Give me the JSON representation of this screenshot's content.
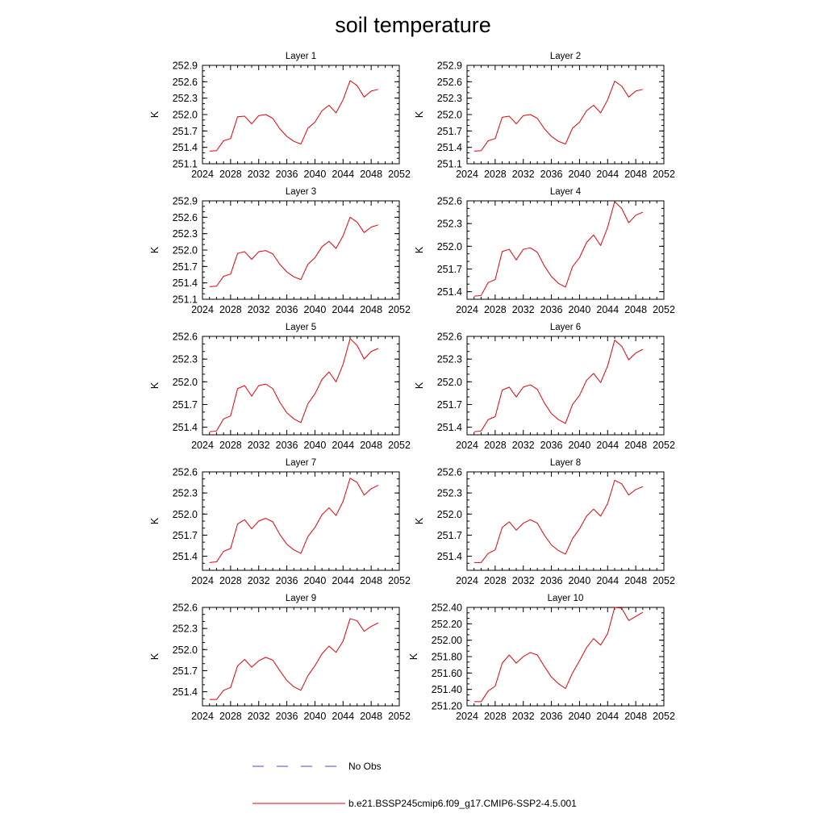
{
  "title": "soil temperature",
  "legend": [
    {
      "label": "No Obs",
      "color": "#4a4ad8",
      "dashed": true
    },
    {
      "label": "b.e21.BSSP245cmip6.f09_g17.CMIP6-SSP2-4.5.001",
      "color": "#e8000b",
      "dashed": false
    }
  ],
  "chart_data": [
    {
      "type": "line",
      "title": "Layer 1",
      "ylabel": "K",
      "xlim": [
        2024,
        2052
      ],
      "xticks": [
        "2024",
        "2028",
        "2032",
        "2036",
        "2040",
        "2044",
        "2048",
        "2052"
      ],
      "ylim": [
        251.1,
        252.9
      ],
      "yticks": [
        "251.1",
        "251.4",
        "251.7",
        "252.0",
        "252.3",
        "252.6",
        "252.9"
      ],
      "series": [
        {
          "color": "#e8000b",
          "x": [
            2025,
            2026,
            2027,
            2028,
            2029,
            2030,
            2031,
            2032,
            2033,
            2034,
            2035,
            2036,
            2037,
            2038,
            2039,
            2040,
            2041,
            2042,
            2043,
            2044,
            2045,
            2046,
            2047,
            2048,
            2049
          ],
          "values": [
            251.33,
            251.34,
            251.52,
            251.56,
            251.96,
            251.97,
            251.83,
            251.98,
            252.0,
            251.93,
            251.74,
            251.6,
            251.51,
            251.46,
            251.75,
            251.86,
            252.07,
            252.17,
            252.03,
            252.27,
            252.62,
            252.53,
            252.32,
            252.43,
            252.46
          ]
        }
      ]
    },
    {
      "type": "line",
      "title": "Layer 2",
      "ylabel": "K",
      "xlim": [
        2024,
        2052
      ],
      "xticks": [
        "2024",
        "2028",
        "2032",
        "2036",
        "2040",
        "2044",
        "2048",
        "2052"
      ],
      "ylim": [
        251.1,
        252.9
      ],
      "yticks": [
        "251.1",
        "251.4",
        "251.7",
        "252.0",
        "252.3",
        "252.6",
        "252.9"
      ],
      "series": [
        {
          "color": "#e8000b",
          "x": [
            2025,
            2026,
            2027,
            2028,
            2029,
            2030,
            2031,
            2032,
            2033,
            2034,
            2035,
            2036,
            2037,
            2038,
            2039,
            2040,
            2041,
            2042,
            2043,
            2044,
            2045,
            2046,
            2047,
            2048,
            2049
          ],
          "values": [
            251.33,
            251.34,
            251.52,
            251.56,
            251.95,
            251.97,
            251.83,
            251.98,
            252.0,
            251.93,
            251.74,
            251.6,
            251.51,
            251.46,
            251.75,
            251.86,
            252.07,
            252.17,
            252.03,
            252.27,
            252.61,
            252.52,
            252.32,
            252.43,
            252.46
          ]
        }
      ]
    },
    {
      "type": "line",
      "title": "Layer 3",
      "ylabel": "K",
      "xlim": [
        2024,
        2052
      ],
      "xticks": [
        "2024",
        "2028",
        "2032",
        "2036",
        "2040",
        "2044",
        "2048",
        "2052"
      ],
      "ylim": [
        251.1,
        252.9
      ],
      "yticks": [
        "251.1",
        "251.4",
        "251.7",
        "252.0",
        "252.3",
        "252.6",
        "252.9"
      ],
      "series": [
        {
          "color": "#e8000b",
          "x": [
            2025,
            2026,
            2027,
            2028,
            2029,
            2030,
            2031,
            2032,
            2033,
            2034,
            2035,
            2036,
            2037,
            2038,
            2039,
            2040,
            2041,
            2042,
            2043,
            2044,
            2045,
            2046,
            2047,
            2048,
            2049
          ],
          "values": [
            251.33,
            251.34,
            251.52,
            251.56,
            251.94,
            251.97,
            251.83,
            251.97,
            251.99,
            251.93,
            251.74,
            251.6,
            251.51,
            251.46,
            251.74,
            251.86,
            252.06,
            252.16,
            252.03,
            252.26,
            252.6,
            252.51,
            252.32,
            252.42,
            252.46
          ]
        }
      ]
    },
    {
      "type": "line",
      "title": "Layer 4",
      "ylabel": "K",
      "xlim": [
        2024,
        2052
      ],
      "xticks": [
        "2024",
        "2028",
        "2032",
        "2036",
        "2040",
        "2044",
        "2048",
        "2052"
      ],
      "ylim": [
        251.3,
        252.6
      ],
      "yticks": [
        "251.4",
        "251.7",
        "252.0",
        "252.3",
        "252.6"
      ],
      "series": [
        {
          "color": "#e8000b",
          "x": [
            2025,
            2026,
            2027,
            2028,
            2029,
            2030,
            2031,
            2032,
            2033,
            2034,
            2035,
            2036,
            2037,
            2038,
            2039,
            2040,
            2041,
            2042,
            2043,
            2044,
            2045,
            2046,
            2047,
            2048,
            2049
          ],
          "values": [
            251.34,
            251.35,
            251.52,
            251.56,
            251.93,
            251.96,
            251.82,
            251.96,
            251.98,
            251.92,
            251.74,
            251.6,
            251.51,
            251.46,
            251.73,
            251.85,
            252.05,
            252.15,
            252.01,
            252.25,
            252.59,
            252.5,
            252.31,
            252.41,
            252.45
          ]
        }
      ]
    },
    {
      "type": "line",
      "title": "Layer 5",
      "ylabel": "K",
      "xlim": [
        2024,
        2052
      ],
      "xticks": [
        "2024",
        "2028",
        "2032",
        "2036",
        "2040",
        "2044",
        "2048",
        "2052"
      ],
      "ylim": [
        251.3,
        252.6
      ],
      "yticks": [
        "251.4",
        "251.7",
        "252.0",
        "252.3",
        "252.6"
      ],
      "series": [
        {
          "color": "#e8000b",
          "x": [
            2025,
            2026,
            2027,
            2028,
            2029,
            2030,
            2031,
            2032,
            2033,
            2034,
            2035,
            2036,
            2037,
            2038,
            2039,
            2040,
            2041,
            2042,
            2043,
            2044,
            2045,
            2046,
            2047,
            2048,
            2049
          ],
          "values": [
            251.34,
            251.35,
            251.51,
            251.55,
            251.91,
            251.95,
            251.81,
            251.95,
            251.97,
            251.91,
            251.73,
            251.59,
            251.51,
            251.46,
            251.71,
            251.84,
            252.03,
            252.13,
            252.0,
            252.23,
            252.57,
            252.48,
            252.3,
            252.4,
            252.44
          ]
        }
      ]
    },
    {
      "type": "line",
      "title": "Layer 6",
      "ylabel": "K",
      "xlim": [
        2024,
        2052
      ],
      "xticks": [
        "2024",
        "2028",
        "2032",
        "2036",
        "2040",
        "2044",
        "2048",
        "2052"
      ],
      "ylim": [
        251.3,
        252.6
      ],
      "yticks": [
        "251.4",
        "251.7",
        "252.0",
        "252.3",
        "252.6"
      ],
      "series": [
        {
          "color": "#e8000b",
          "x": [
            2025,
            2026,
            2027,
            2028,
            2029,
            2030,
            2031,
            2032,
            2033,
            2034,
            2035,
            2036,
            2037,
            2038,
            2039,
            2040,
            2041,
            2042,
            2043,
            2044,
            2045,
            2046,
            2047,
            2048,
            2049
          ],
          "values": [
            251.34,
            251.35,
            251.5,
            251.54,
            251.89,
            251.93,
            251.8,
            251.93,
            251.96,
            251.9,
            251.72,
            251.58,
            251.5,
            251.45,
            251.7,
            251.82,
            252.02,
            252.11,
            251.99,
            252.21,
            252.55,
            252.47,
            252.29,
            252.38,
            252.43
          ]
        }
      ]
    },
    {
      "type": "line",
      "title": "Layer 7",
      "ylabel": "K",
      "xlim": [
        2024,
        2052
      ],
      "xticks": [
        "2024",
        "2028",
        "2032",
        "2036",
        "2040",
        "2044",
        "2048",
        "2052"
      ],
      "ylim": [
        251.2,
        252.6
      ],
      "yticks": [
        "251.4",
        "251.7",
        "252.0",
        "252.3",
        "252.6"
      ],
      "series": [
        {
          "color": "#e8000b",
          "x": [
            2025,
            2026,
            2027,
            2028,
            2029,
            2030,
            2031,
            2032,
            2033,
            2034,
            2035,
            2036,
            2037,
            2038,
            2039,
            2040,
            2041,
            2042,
            2043,
            2044,
            2045,
            2046,
            2047,
            2048,
            2049
          ],
          "values": [
            251.31,
            251.32,
            251.47,
            251.51,
            251.86,
            251.92,
            251.79,
            251.9,
            251.94,
            251.89,
            251.71,
            251.57,
            251.49,
            251.44,
            251.68,
            251.81,
            251.99,
            252.09,
            251.98,
            252.18,
            252.51,
            252.45,
            252.27,
            252.36,
            252.41
          ]
        }
      ]
    },
    {
      "type": "line",
      "title": "Layer 8",
      "ylabel": "K",
      "xlim": [
        2024,
        2052
      ],
      "xticks": [
        "2024",
        "2028",
        "2032",
        "2036",
        "2040",
        "2044",
        "2048",
        "2052"
      ],
      "ylim": [
        251.2,
        252.6
      ],
      "yticks": [
        "251.4",
        "251.7",
        "252.0",
        "252.3",
        "252.6"
      ],
      "series": [
        {
          "color": "#e8000b",
          "x": [
            2025,
            2026,
            2027,
            2028,
            2029,
            2030,
            2031,
            2032,
            2033,
            2034,
            2035,
            2036,
            2037,
            2038,
            2039,
            2040,
            2041,
            2042,
            2043,
            2044,
            2045,
            2046,
            2047,
            2048,
            2049
          ],
          "values": [
            251.31,
            251.31,
            251.44,
            251.49,
            251.81,
            251.89,
            251.77,
            251.87,
            251.92,
            251.87,
            251.7,
            251.56,
            251.48,
            251.43,
            251.65,
            251.79,
            251.97,
            252.07,
            251.97,
            252.15,
            252.48,
            252.43,
            252.27,
            252.35,
            252.39
          ]
        }
      ]
    },
    {
      "type": "line",
      "title": "Layer 9",
      "ylabel": "K",
      "xlim": [
        2024,
        2052
      ],
      "xticks": [
        "2024",
        "2028",
        "2032",
        "2036",
        "2040",
        "2044",
        "2048",
        "2052"
      ],
      "ylim": [
        251.2,
        252.6
      ],
      "yticks": [
        "251.4",
        "251.7",
        "252.0",
        "252.3",
        "252.6"
      ],
      "series": [
        {
          "color": "#e8000b",
          "x": [
            2025,
            2026,
            2027,
            2028,
            2029,
            2030,
            2031,
            2032,
            2033,
            2034,
            2035,
            2036,
            2037,
            2038,
            2039,
            2040,
            2041,
            2042,
            2043,
            2044,
            2045,
            2046,
            2047,
            2048,
            2049
          ],
          "values": [
            251.29,
            251.29,
            251.42,
            251.46,
            251.77,
            251.86,
            251.75,
            251.84,
            251.89,
            251.85,
            251.7,
            251.56,
            251.47,
            251.42,
            251.63,
            251.77,
            251.94,
            252.05,
            251.96,
            252.12,
            252.44,
            252.41,
            252.26,
            252.33,
            252.38
          ]
        }
      ]
    },
    {
      "type": "line",
      "title": "Layer 10",
      "ylabel": "K",
      "xlim": [
        2024,
        2052
      ],
      "xticks": [
        "2024",
        "2028",
        "2032",
        "2036",
        "2040",
        "2044",
        "2048",
        "2052"
      ],
      "ylim": [
        251.2,
        252.4
      ],
      "yticks": [
        "251.20",
        "251.40",
        "251.60",
        "251.80",
        "252.00",
        "252.20",
        "252.40"
      ],
      "series": [
        {
          "color": "#e8000b",
          "x": [
            2025,
            2026,
            2027,
            2028,
            2029,
            2030,
            2031,
            2032,
            2033,
            2034,
            2035,
            2036,
            2037,
            2038,
            2039,
            2040,
            2041,
            2042,
            2043,
            2044,
            2045,
            2046,
            2047,
            2048,
            2049
          ],
          "values": [
            251.25,
            251.25,
            251.38,
            251.44,
            251.72,
            251.82,
            251.72,
            251.8,
            251.85,
            251.82,
            251.68,
            251.55,
            251.47,
            251.41,
            251.6,
            251.75,
            251.91,
            252.02,
            251.94,
            252.08,
            252.4,
            252.39,
            252.24,
            252.29,
            252.34
          ]
        }
      ]
    }
  ]
}
